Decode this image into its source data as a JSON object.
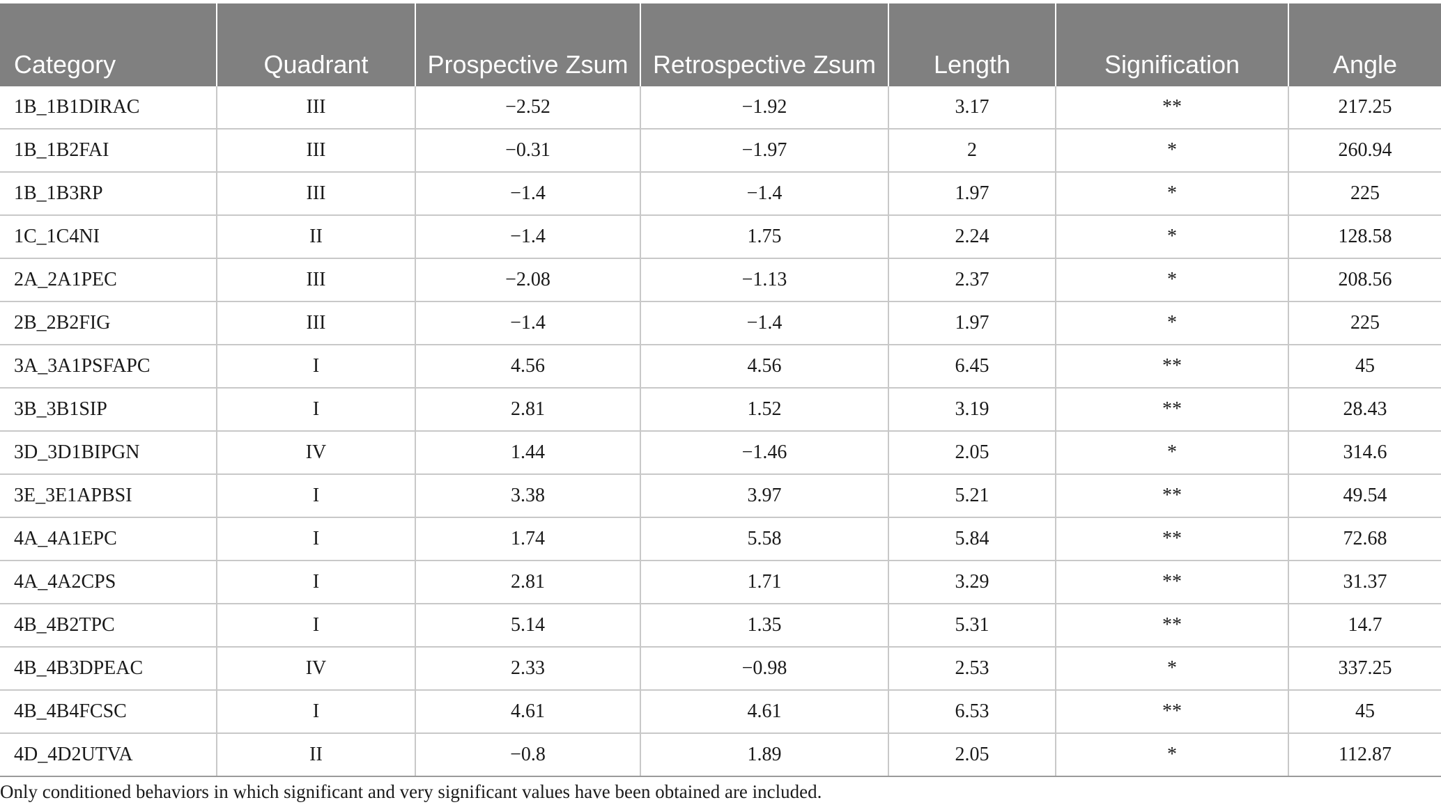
{
  "table": {
    "headers": [
      "Category",
      "Quadrant",
      "Prospective Zsum",
      "Retrospective Zsum",
      "Length",
      "Signification",
      "Angle"
    ],
    "rows": [
      [
        "1B_1B1DIRAC",
        "III",
        "−2.52",
        "−1.92",
        "3.17",
        "**",
        "217.25"
      ],
      [
        "1B_1B2FAI",
        "III",
        "−0.31",
        "−1.97",
        "2",
        "*",
        "260.94"
      ],
      [
        "1B_1B3RP",
        "III",
        "−1.4",
        "−1.4",
        "1.97",
        "*",
        "225"
      ],
      [
        "1C_1C4NI",
        "II",
        "−1.4",
        "1.75",
        "2.24",
        "*",
        "128.58"
      ],
      [
        "2A_2A1PEC",
        "III",
        "−2.08",
        "−1.13",
        "2.37",
        "*",
        "208.56"
      ],
      [
        "2B_2B2FIG",
        "III",
        "−1.4",
        "−1.4",
        "1.97",
        "*",
        "225"
      ],
      [
        "3A_3A1PSFAPC",
        "I",
        "4.56",
        "4.56",
        "6.45",
        "**",
        "45"
      ],
      [
        "3B_3B1SIP",
        "I",
        "2.81",
        "1.52",
        "3.19",
        "**",
        "28.43"
      ],
      [
        "3D_3D1BIPGN",
        "IV",
        "1.44",
        "−1.46",
        "2.05",
        "*",
        "314.6"
      ],
      [
        "3E_3E1APBSI",
        "I",
        "3.38",
        "3.97",
        "5.21",
        "**",
        "49.54"
      ],
      [
        "4A_4A1EPC",
        "I",
        "1.74",
        "5.58",
        "5.84",
        "**",
        "72.68"
      ],
      [
        "4A_4A2CPS",
        "I",
        "2.81",
        "1.71",
        "3.29",
        "**",
        "31.37"
      ],
      [
        "4B_4B2TPC",
        "I",
        "5.14",
        "1.35",
        "5.31",
        "**",
        "14.7"
      ],
      [
        "4B_4B3DPEAC",
        "IV",
        "2.33",
        "−0.98",
        "2.53",
        "*",
        "337.25"
      ],
      [
        "4B_4B4FCSC",
        "I",
        "4.61",
        "4.61",
        "6.53",
        "**",
        "45"
      ],
      [
        "4D_4D2UTVA",
        "II",
        "−0.8",
        "1.89",
        "2.05",
        "*",
        "112.87"
      ]
    ]
  },
  "footnote": "Only conditioned behaviors in which significant and very significant values have been obtained are included."
}
